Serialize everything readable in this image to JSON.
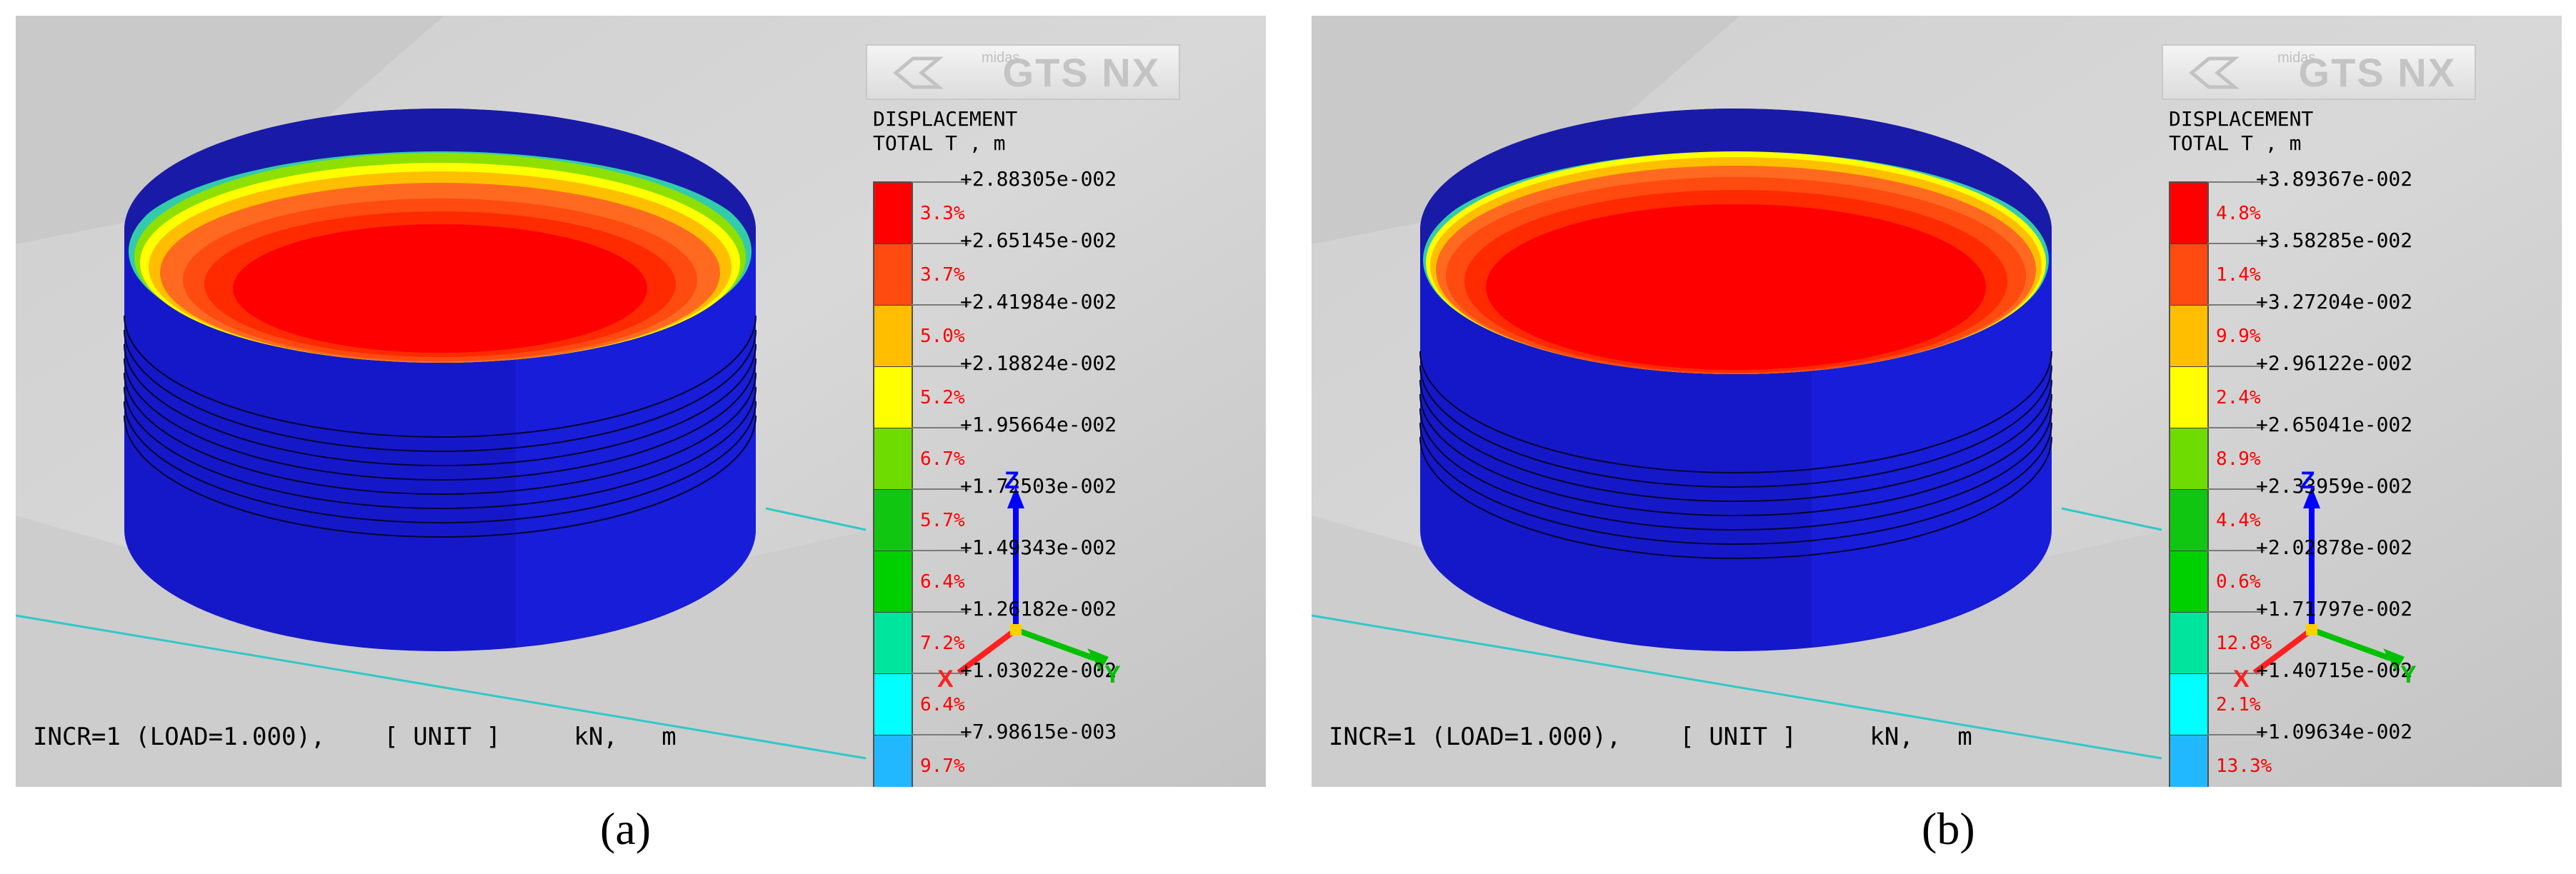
{
  "panels": [
    {
      "id": "a",
      "caption": "(a)",
      "logo": {
        "small": "midas",
        "brand": "GTS NX"
      },
      "legend": {
        "title_line1": "DISPLACEMENT",
        "title_line2": "TOTAL T , m",
        "values": [
          "+2.88305e-002",
          "+2.65145e-002",
          "+2.41984e-002",
          "+2.18824e-002",
          "+1.95664e-002",
          "+1.72503e-002",
          "+1.49343e-002",
          "+1.26182e-002",
          "+1.03022e-002",
          "+7.98615e-003"
        ],
        "percents": [
          "3.3%",
          "3.7%",
          "5.0%",
          "5.2%",
          "6.7%",
          "5.7%",
          "6.4%",
          "7.2%",
          "6.4%",
          "9.7%"
        ]
      },
      "status": "INCR=1 (LOAD=1.000),    [ UNIT ]     kN,   m",
      "axes": {
        "z": "Z",
        "x": "X",
        "y": "Y"
      }
    },
    {
      "id": "b",
      "caption": "(b)",
      "logo": {
        "small": "midas",
        "brand": "GTS NX"
      },
      "legend": {
        "title_line1": "DISPLACEMENT",
        "title_line2": "TOTAL T , m",
        "values": [
          "+3.89367e-002",
          "+3.58285e-002",
          "+3.27204e-002",
          "+2.96122e-002",
          "+2.65041e-002",
          "+2.33959e-002",
          "+2.02878e-002",
          "+1.71797e-002",
          "+1.40715e-002",
          "+1.09634e-002"
        ],
        "percents": [
          "4.8%",
          "1.4%",
          "9.9%",
          "2.4%",
          "8.9%",
          "4.4%",
          "0.6%",
          "12.8%",
          "2.1%",
          "13.3%"
        ]
      },
      "status": "INCR=1 (LOAD=1.000),    [ UNIT ]     kN,   m",
      "axes": {
        "z": "Z",
        "x": "X",
        "y": "Y"
      }
    }
  ],
  "colors": {
    "swatches": [
      "#ff0000",
      "#ff4a10",
      "#ffbf00",
      "#ffff00",
      "#6fdc00",
      "#11c611",
      "#00d000",
      "#00e59e",
      "#00ffff",
      "#22b8ff"
    ],
    "cylinder_side": "#1518c8",
    "cylinder_side_light": "#1c22e8",
    "background": "#d2d2d2"
  }
}
